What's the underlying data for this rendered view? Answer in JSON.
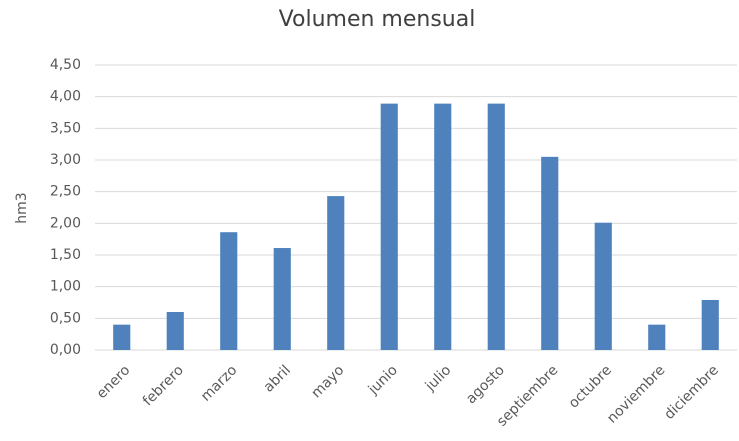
{
  "chart_data": {
    "type": "bar",
    "title": "Volumen mensual",
    "y_label": "hm3",
    "categories": [
      "enero",
      "febrero",
      "marzo",
      "abril",
      "mayo",
      "junio",
      "julio",
      "agosto",
      "septiembre",
      "octubre",
      "noviembre",
      "diciembre"
    ],
    "values": [
      0.4,
      0.6,
      1.86,
      1.61,
      2.43,
      3.89,
      3.89,
      3.89,
      3.05,
      2.01,
      0.4,
      0.79
    ],
    "color": "#4f81bd",
    "ylim": [
      0,
      4.5
    ],
    "yticks": [
      {
        "value": 0,
        "label": "0,00"
      },
      {
        "value": 0.5,
        "label": "0,50"
      },
      {
        "value": 1,
        "label": "1,00"
      },
      {
        "value": 1.5,
        "label": "1,50"
      },
      {
        "value": 2,
        "label": "2,00"
      },
      {
        "value": 2.5,
        "label": "2,50"
      },
      {
        "value": 3,
        "label": "3,00"
      },
      {
        "value": 3.5,
        "label": "3,50"
      },
      {
        "value": 4,
        "label": "4,00"
      },
      {
        "value": 4.5,
        "label": "4,50"
      }
    ],
    "grid": true
  }
}
